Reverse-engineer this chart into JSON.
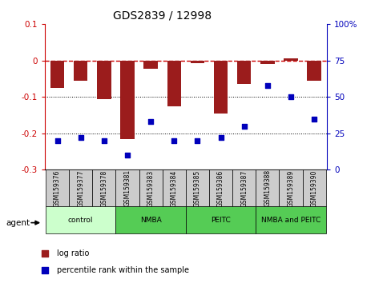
{
  "title": "GDS2839 / 12998",
  "samples": [
    "GSM159376",
    "GSM159377",
    "GSM159378",
    "GSM159381",
    "GSM159383",
    "GSM159384",
    "GSM159385",
    "GSM159386",
    "GSM159387",
    "GSM159388",
    "GSM159389",
    "GSM159390"
  ],
  "log_ratio": [
    -0.075,
    -0.055,
    -0.105,
    -0.215,
    -0.022,
    -0.125,
    -0.008,
    -0.145,
    -0.065,
    -0.01,
    0.005,
    -0.055
  ],
  "percentile_rank": [
    20,
    22,
    20,
    10,
    33,
    20,
    20,
    22,
    30,
    58,
    50,
    35
  ],
  "bar_color": "#9b1c1c",
  "dot_color": "#0000bb",
  "dashed_line_color": "#cc0000",
  "groups": [
    {
      "label": "control",
      "start": 0,
      "end": 3,
      "color": "#ccffcc"
    },
    {
      "label": "NMBA",
      "start": 3,
      "end": 6,
      "color": "#55cc55"
    },
    {
      "label": "PEITC",
      "start": 6,
      "end": 9,
      "color": "#55cc55"
    },
    {
      "label": "NMBA and PEITC",
      "start": 9,
      "end": 12,
      "color": "#55cc55"
    }
  ],
  "ylim_left": [
    -0.3,
    0.1
  ],
  "ylim_right": [
    0,
    100
  ],
  "yticks_left": [
    -0.3,
    -0.2,
    -0.1,
    0,
    0.1
  ],
  "yticks_right": [
    0,
    25,
    50,
    75,
    100
  ],
  "ytick_labels_right": [
    "0",
    "25",
    "50",
    "75",
    "100%"
  ],
  "agent_label": "agent",
  "legend_items": [
    {
      "color": "#9b1c1c",
      "label": "log ratio"
    },
    {
      "color": "#0000bb",
      "label": "percentile rank within the sample"
    }
  ]
}
